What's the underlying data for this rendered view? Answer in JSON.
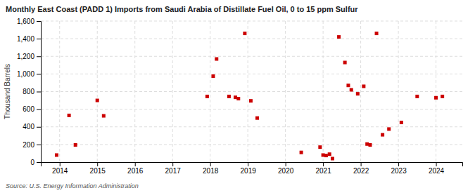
{
  "chart_data": {
    "type": "scatter",
    "title": "Monthly East Coast (PADD 1) Imports from Saudi Arabia of Distillate Fuel Oil, 0 to 15 ppm Sulfur",
    "ylabel": "Thousand Barrels",
    "source": "Source: U.S. Energy Information Administration",
    "color": "#cc0000",
    "marker": "square",
    "grid": true,
    "xlim": [
      2013.5,
      2024.7
    ],
    "xticks": [
      2014,
      2015,
      2016,
      2017,
      2018,
      2019,
      2020,
      2021,
      2022,
      2023,
      2024
    ],
    "ylim": [
      0,
      1600
    ],
    "yticks": [
      0,
      200,
      400,
      600,
      800,
      {
        "value": 1000,
        "label": "1,000"
      },
      {
        "value": 1200,
        "label": "1,200"
      },
      {
        "value": 1400,
        "label": "1,400"
      },
      {
        "value": 1600,
        "label": "1,600"
      }
    ],
    "x": [
      2013.92,
      2014.25,
      2014.42,
      2015.0,
      2015.17,
      2017.92,
      2018.08,
      2018.17,
      2018.5,
      2018.67,
      2018.75,
      2018.92,
      2019.08,
      2019.25,
      2020.42,
      2020.92,
      2021.0,
      2021.08,
      2021.17,
      2021.25,
      2021.42,
      2021.58,
      2021.67,
      2021.75,
      2021.92,
      2022.08,
      2022.17,
      2022.25,
      2022.42,
      2022.58,
      2022.75,
      2023.08,
      2023.5,
      2024.0,
      2024.17
    ],
    "values": [
      80,
      530,
      195,
      700,
      525,
      745,
      975,
      1170,
      745,
      735,
      720,
      1460,
      695,
      500,
      110,
      170,
      80,
      75,
      90,
      40,
      1420,
      1130,
      870,
      820,
      775,
      860,
      205,
      195,
      1460,
      310,
      375,
      450,
      745,
      730,
      745
    ]
  }
}
